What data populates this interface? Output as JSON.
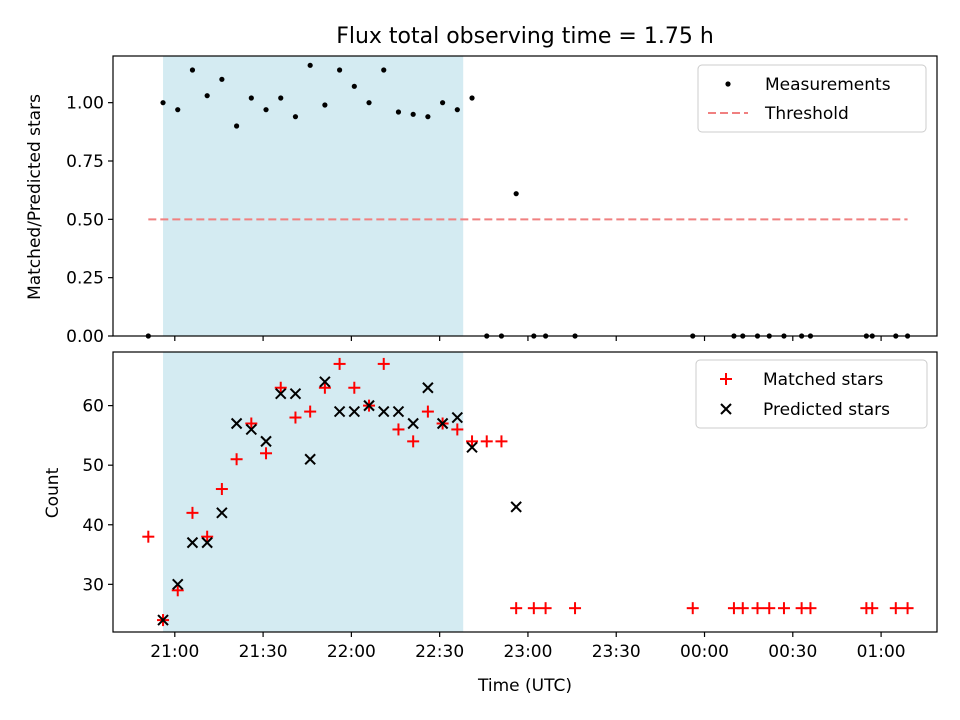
{
  "chart_data": [
    {
      "type": "scatter",
      "title": "Flux total observing time = 1.75 h",
      "ylabel": "Matched/Predicted stars",
      "xlabel": "",
      "xlim": [
        "20:39",
        "22:55+2:30"
      ],
      "ylim": [
        0.0,
        1.2
      ],
      "yticks": [
        "0.00",
        "0.25",
        "0.50",
        "0.75",
        "1.00"
      ],
      "ytick_values": [
        0,
        0.25,
        0.5,
        0.75,
        1.0
      ],
      "observing_window": [
        "20:56",
        "22:38"
      ],
      "window_color": "#d4ebf2",
      "legend": {
        "position": "top-right",
        "entries": [
          "Measurements",
          "Threshold"
        ]
      },
      "threshold": {
        "name": "Threshold",
        "value": 0.5,
        "x_start": "20:51",
        "x_end": "01:09",
        "color": "#f08080",
        "style": "dashed"
      },
      "series": [
        {
          "name": "Measurements",
          "color": "#000000",
          "marker": "dot",
          "points": [
            [
              "20:51",
              0.0
            ],
            [
              "20:56",
              1.0
            ],
            [
              "21:01",
              0.97
            ],
            [
              "21:06",
              1.14
            ],
            [
              "21:11",
              1.03
            ],
            [
              "21:16",
              1.1
            ],
            [
              "21:21",
              0.9
            ],
            [
              "21:26",
              1.02
            ],
            [
              "21:31",
              0.97
            ],
            [
              "21:36",
              1.02
            ],
            [
              "21:41",
              0.94
            ],
            [
              "21:46",
              1.16
            ],
            [
              "21:51",
              0.99
            ],
            [
              "21:56",
              1.14
            ],
            [
              "22:01",
              1.07
            ],
            [
              "22:06",
              1.0
            ],
            [
              "22:11",
              1.14
            ],
            [
              "22:16",
              0.96
            ],
            [
              "22:21",
              0.95
            ],
            [
              "22:26",
              0.94
            ],
            [
              "22:31",
              1.0
            ],
            [
              "22:36",
              0.97
            ],
            [
              "22:41",
              1.02
            ],
            [
              "22:46",
              0.0
            ],
            [
              "22:51",
              0.0
            ],
            [
              "22:56",
              0.61
            ],
            [
              "23:02",
              0.0
            ],
            [
              "23:06",
              0.0
            ],
            [
              "23:16",
              0.0
            ],
            [
              "23:56",
              0.0
            ],
            [
              "00:10",
              0.0
            ],
            [
              "00:13",
              0.0
            ],
            [
              "00:18",
              0.0
            ],
            [
              "00:22",
              0.0
            ],
            [
              "00:27",
              0.0
            ],
            [
              "00:33",
              0.0
            ],
            [
              "00:36",
              0.0
            ],
            [
              "00:55",
              0.0
            ],
            [
              "00:57",
              0.0
            ],
            [
              "01:05",
              0.0
            ],
            [
              "01:09",
              0.0
            ]
          ]
        }
      ]
    },
    {
      "type": "scatter",
      "title": "",
      "ylabel": "Count",
      "xlabel": "Time (UTC)",
      "ylim": [
        22,
        69
      ],
      "yticks": [
        "30",
        "40",
        "50",
        "60"
      ],
      "ytick_values": [
        30,
        40,
        50,
        60
      ],
      "xticks": [
        "21:00",
        "21:30",
        "22:00",
        "22:30",
        "23:00",
        "23:30",
        "00:00",
        "00:30",
        "01:00"
      ],
      "observing_window": [
        "20:56",
        "22:38"
      ],
      "window_color": "#d4ebf2",
      "legend": {
        "position": "top-right",
        "entries": [
          "Matched stars",
          "Predicted stars"
        ]
      },
      "series": [
        {
          "name": "Matched stars",
          "color": "#ff0000",
          "marker": "plus",
          "points": [
            [
              "20:51",
              38
            ],
            [
              "20:56",
              24
            ],
            [
              "21:01",
              29
            ],
            [
              "21:06",
              42
            ],
            [
              "21:11",
              38
            ],
            [
              "21:16",
              46
            ],
            [
              "21:21",
              51
            ],
            [
              "21:26",
              57
            ],
            [
              "21:31",
              52
            ],
            [
              "21:36",
              63
            ],
            [
              "21:41",
              58
            ],
            [
              "21:46",
              59
            ],
            [
              "21:51",
              63
            ],
            [
              "21:56",
              67
            ],
            [
              "22:01",
              63
            ],
            [
              "22:06",
              60
            ],
            [
              "22:11",
              67
            ],
            [
              "22:16",
              56
            ],
            [
              "22:21",
              54
            ],
            [
              "22:26",
              59
            ],
            [
              "22:31",
              57
            ],
            [
              "22:36",
              56
            ],
            [
              "22:41",
              54
            ],
            [
              "22:46",
              54
            ],
            [
              "22:51",
              54
            ],
            [
              "22:56",
              26
            ],
            [
              "23:02",
              26
            ],
            [
              "23:06",
              26
            ],
            [
              "23:16",
              26
            ],
            [
              "23:56",
              26
            ],
            [
              "00:10",
              26
            ],
            [
              "00:13",
              26
            ],
            [
              "00:18",
              26
            ],
            [
              "00:22",
              26
            ],
            [
              "00:27",
              26
            ],
            [
              "00:33",
              26
            ],
            [
              "00:36",
              26
            ],
            [
              "00:55",
              26
            ],
            [
              "00:57",
              26
            ],
            [
              "01:05",
              26
            ],
            [
              "01:09",
              26
            ]
          ]
        },
        {
          "name": "Predicted stars",
          "color": "#000000",
          "marker": "x",
          "points": [
            [
              "20:56",
              24
            ],
            [
              "21:01",
              30
            ],
            [
              "21:06",
              37
            ],
            [
              "21:11",
              37
            ],
            [
              "21:16",
              42
            ],
            [
              "21:21",
              57
            ],
            [
              "21:26",
              56
            ],
            [
              "21:31",
              54
            ],
            [
              "21:36",
              62
            ],
            [
              "21:41",
              62
            ],
            [
              "21:46",
              51
            ],
            [
              "21:51",
              64
            ],
            [
              "21:56",
              59
            ],
            [
              "22:01",
              59
            ],
            [
              "22:06",
              60
            ],
            [
              "22:11",
              59
            ],
            [
              "22:16",
              59
            ],
            [
              "22:21",
              57
            ],
            [
              "22:26",
              63
            ],
            [
              "22:31",
              57
            ],
            [
              "22:36",
              58
            ],
            [
              "22:41",
              53
            ],
            [
              "22:56",
              43
            ]
          ]
        }
      ]
    }
  ]
}
